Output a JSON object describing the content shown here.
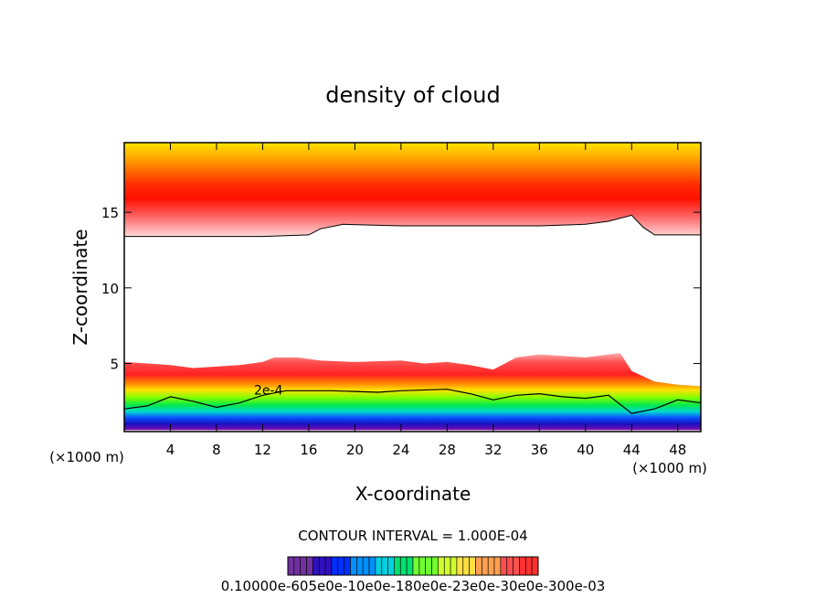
{
  "chart_data": {
    "type": "heatmap",
    "title": "density of cloud",
    "xlabel": "X-coordinate",
    "ylabel": "Z-coordinate",
    "x_unit_left": "(×1000 m)",
    "x_unit_right": "(×1000 m)",
    "xlim": [
      0,
      50
    ],
    "ylim": [
      0.5,
      19.6
    ],
    "x_ticks": [
      4,
      8,
      12,
      16,
      20,
      24,
      28,
      32,
      36,
      40,
      44,
      48
    ],
    "x_tick_labels": [
      "4",
      "8",
      "12",
      "16",
      "20",
      "24",
      "28",
      "32",
      "36",
      "40",
      "44",
      "48"
    ],
    "y_ticks": [
      5,
      10,
      15
    ],
    "y_tick_labels": [
      "5",
      "10",
      "15"
    ],
    "contour_label": "2e-4",
    "contour_interval_text": "CONTOUR INTERVAL = 1.000E-04",
    "colorbar_label_text": "0.10000e-605e0e-10e0e-180e0e-23e0e-30e0e-300e-03",
    "colors": {
      "upper_band_top": "#ffe400",
      "upper_band_core": "#ff1500",
      "upper_band_edge": "#ffd0c8",
      "lower_band": [
        "#ff9a9a",
        "#ff3a3a",
        "#ff8a00",
        "#ffe000",
        "#8cff00",
        "#00e85a",
        "#00e0d0",
        "#0a50ff",
        "#1a10c0",
        "#7a10b0"
      ],
      "colorbar": [
        "#7030a0",
        "#3010c0",
        "#0030ff",
        "#0090ff",
        "#00d0e0",
        "#00e070",
        "#70ff30",
        "#d0ff30",
        "#ffe040",
        "#ffa050",
        "#ff5050",
        "#ff3030"
      ]
    },
    "upper_cloud_base_profile": {
      "x": [
        0,
        4,
        8,
        12,
        16,
        17,
        19,
        24,
        28,
        32,
        36,
        40,
        42,
        44,
        45,
        46,
        50
      ],
      "z": [
        13.4,
        13.4,
        13.4,
        13.4,
        13.5,
        13.9,
        14.2,
        14.1,
        14.1,
        14.1,
        14.1,
        14.2,
        14.4,
        14.8,
        14.0,
        13.5,
        13.5
      ]
    },
    "lower_cloud_top_profile": {
      "x": [
        0,
        2,
        4,
        6,
        8,
        10,
        12,
        13,
        15,
        17,
        20,
        24,
        26,
        28,
        30,
        32,
        34,
        36,
        38,
        40,
        42,
        43,
        44,
        46,
        48,
        50
      ],
      "z": [
        5.1,
        5.0,
        4.9,
        4.7,
        4.8,
        4.9,
        5.1,
        5.4,
        5.4,
        5.2,
        5.1,
        5.2,
        5.0,
        5.1,
        4.9,
        4.6,
        5.4,
        5.6,
        5.5,
        5.4,
        5.6,
        5.7,
        4.5,
        3.8,
        3.6,
        3.5
      ]
    },
    "contour_2e4_profile": {
      "x": [
        0,
        2,
        4,
        6,
        8,
        10,
        12,
        14,
        18,
        22,
        24,
        28,
        30,
        32,
        34,
        36,
        38,
        40,
        42,
        44,
        46,
        48,
        50
      ],
      "z": [
        2.0,
        2.2,
        2.8,
        2.5,
        2.1,
        2.4,
        2.9,
        3.2,
        3.2,
        3.1,
        3.2,
        3.3,
        3.0,
        2.6,
        2.9,
        3.0,
        2.8,
        2.7,
        2.9,
        1.7,
        2.0,
        2.6,
        2.4
      ]
    },
    "lower_cloud_base_z": 0.6,
    "grid": false,
    "legend": "colorbar bottom-center"
  }
}
